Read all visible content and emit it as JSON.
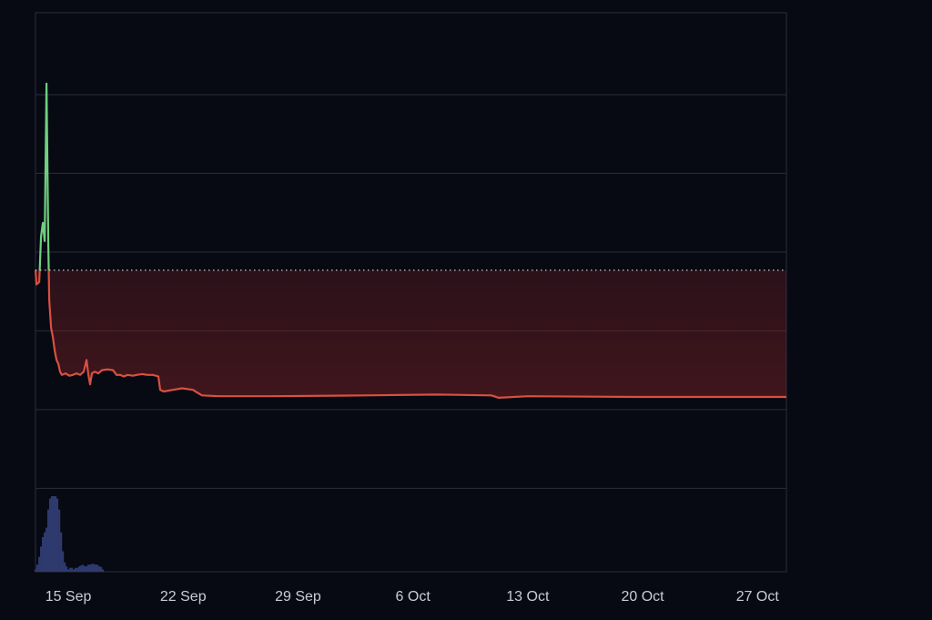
{
  "chart_data": {
    "type": "line",
    "x": [
      -2.0,
      -1.94,
      -1.77,
      -1.66,
      -1.55,
      -1.44,
      -1.33,
      -1.22,
      -1.16,
      -1.05,
      -0.94,
      -0.83,
      -0.72,
      -0.61,
      -0.5,
      -0.39,
      -0.17,
      0.06,
      0.28,
      0.5,
      0.72,
      0.94,
      1.11,
      1.22,
      1.33,
      1.44,
      1.61,
      1.83,
      2.05,
      2.38,
      2.72,
      2.94,
      3.16,
      3.38,
      3.61,
      3.94,
      4.16,
      4.49,
      4.83,
      5.16,
      5.49,
      5.6,
      5.82,
      6.38,
      6.93,
      7.6,
      7.82,
      8.15,
      9.15,
      12.48,
      18.03,
      22.46,
      25.79,
      26.23,
      28.01,
      34.66,
      39.1,
      43.76
    ],
    "series": [
      {
        "color": "#d9503f",
        "above_color": "#6fcf7f",
        "values": [
          3.77,
          3.59,
          3.62,
          4.2,
          4.37,
          4.14,
          6.14,
          4.08,
          3.39,
          3.04,
          2.92,
          2.75,
          2.63,
          2.58,
          2.48,
          2.44,
          2.46,
          2.43,
          2.44,
          2.46,
          2.44,
          2.48,
          2.63,
          2.44,
          2.32,
          2.46,
          2.48,
          2.46,
          2.5,
          2.51,
          2.5,
          2.44,
          2.44,
          2.42,
          2.44,
          2.43,
          2.44,
          2.45,
          2.44,
          2.44,
          2.42,
          2.25,
          2.23,
          2.25,
          2.27,
          2.25,
          2.22,
          2.18,
          2.17,
          2.17,
          2.18,
          2.19,
          2.18,
          2.15,
          2.17,
          2.16,
          2.16,
          2.16
        ]
      }
    ],
    "baseline": 3.77,
    "volume": {
      "color": "#2e3a6e",
      "x": [
        -2.0,
        -1.89,
        -1.77,
        -1.66,
        -1.55,
        -1.44,
        -1.33,
        -1.22,
        -1.11,
        -1.0,
        -0.89,
        -0.78,
        -0.67,
        -0.55,
        -0.44,
        -0.33,
        -0.22,
        -0.11,
        0,
        0.11,
        0.22,
        0.33,
        0.44,
        0.55,
        0.67,
        0.78,
        0.89,
        1.0,
        1.11,
        1.22,
        1.33,
        1.44,
        1.55,
        1.66,
        1.77,
        1.89,
        2.0,
        2.11
      ],
      "values": [
        0.03,
        0.09,
        0.19,
        0.32,
        0.44,
        0.5,
        0.56,
        0.79,
        0.93,
        0.96,
        0.96,
        0.96,
        0.93,
        0.79,
        0.5,
        0.26,
        0.12,
        0.07,
        0.03,
        0.05,
        0.05,
        0.03,
        0.05,
        0.05,
        0.07,
        0.08,
        0.09,
        0.07,
        0.07,
        0.09,
        0.09,
        0.1,
        0.1,
        0.09,
        0.09,
        0.07,
        0.06,
        0.03
      ]
    },
    "xlim": [
      -2.0,
      43.76
    ],
    "xticks": [
      {
        "value": 0,
        "label": "15 Sep"
      },
      {
        "value": 7,
        "label": "22 Sep"
      },
      {
        "value": 14,
        "label": "29 Sep"
      },
      {
        "value": 21,
        "label": "6 Oct"
      },
      {
        "value": 28,
        "label": "13 Oct"
      },
      {
        "value": 35,
        "label": "20 Oct"
      },
      {
        "value": 42,
        "label": "27 Oct"
      }
    ],
    "ylim": [
      -0.06,
      7.04
    ],
    "yticks": [
      1,
      2,
      3,
      4,
      5,
      6
    ],
    "grid": true
  }
}
